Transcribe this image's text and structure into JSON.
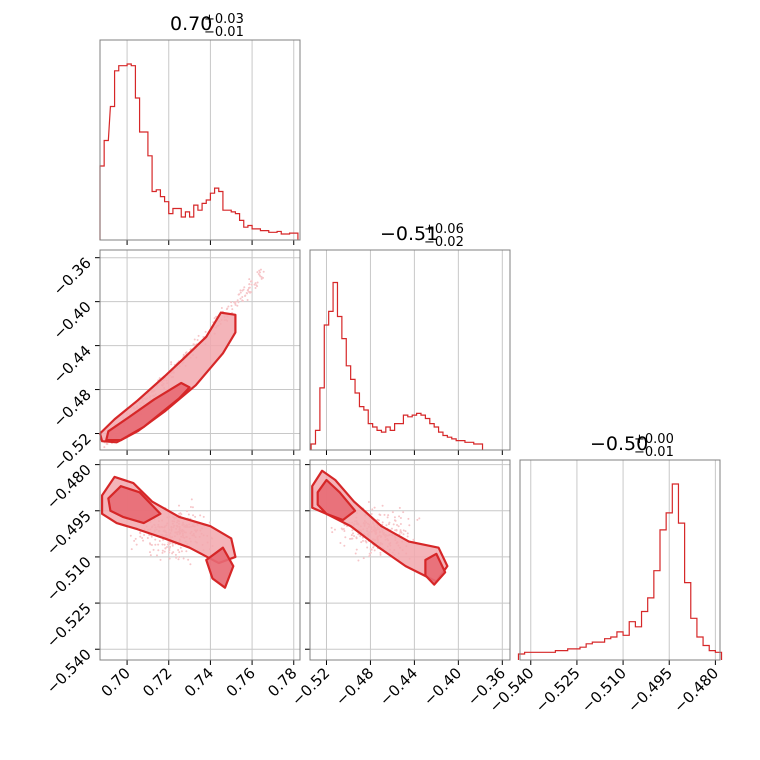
{
  "figure": {
    "kind": "corner plot",
    "accent_color": "#d62728",
    "contour_fill": "#f2a7ad",
    "point_color": "#f6c6c9"
  },
  "chart_data": [
    {
      "type": "histogram",
      "id": "p1",
      "title_main": "0.70",
      "title_sup": "+0.03",
      "title_sub": "−0.01",
      "xlim": [
        0.687,
        0.783
      ],
      "grid": true,
      "xticks": [
        0.7,
        0.72,
        0.74,
        0.76,
        0.78
      ],
      "bins": [
        [
          0.688,
          0.4
        ],
        [
          0.69,
          0.55
        ],
        [
          0.693,
          0.75
        ],
        [
          0.695,
          0.96
        ],
        [
          0.697,
          0.99
        ],
        [
          0.699,
          0.99
        ],
        [
          0.701,
          1.0
        ],
        [
          0.703,
          0.99
        ],
        [
          0.705,
          0.8
        ],
        [
          0.707,
          0.6
        ],
        [
          0.709,
          0.6
        ],
        [
          0.711,
          0.46
        ],
        [
          0.713,
          0.25
        ],
        [
          0.715,
          0.26
        ],
        [
          0.717,
          0.22
        ],
        [
          0.719,
          0.19
        ],
        [
          0.721,
          0.12
        ],
        [
          0.723,
          0.15
        ],
        [
          0.725,
          0.15
        ],
        [
          0.727,
          0.1
        ],
        [
          0.729,
          0.13
        ],
        [
          0.731,
          0.1
        ],
        [
          0.733,
          0.17
        ],
        [
          0.735,
          0.14
        ],
        [
          0.737,
          0.18
        ],
        [
          0.739,
          0.2
        ],
        [
          0.741,
          0.24
        ],
        [
          0.743,
          0.27
        ],
        [
          0.745,
          0.25
        ],
        [
          0.747,
          0.14
        ],
        [
          0.749,
          0.14
        ],
        [
          0.751,
          0.13
        ],
        [
          0.753,
          0.12
        ],
        [
          0.755,
          0.08
        ],
        [
          0.757,
          0.04
        ],
        [
          0.759,
          0.05
        ],
        [
          0.761,
          0.03
        ],
        [
          0.763,
          0.03
        ],
        [
          0.765,
          0.02
        ],
        [
          0.767,
          0.02
        ],
        [
          0.769,
          0.01
        ],
        [
          0.771,
          0.01
        ],
        [
          0.773,
          0.015
        ],
        [
          0.775,
          0.0
        ],
        [
          0.777,
          0.0
        ],
        [
          0.779,
          0.005
        ],
        [
          0.781,
          0.005
        ]
      ]
    },
    {
      "type": "histogram",
      "id": "p2",
      "title_main": "−0.51",
      "title_sup": "+0.06",
      "title_sub": "−0.02",
      "xlim": [
        -0.535,
        -0.353
      ],
      "grid": true,
      "xticks": [
        -0.52,
        -0.48,
        -0.44,
        -0.4,
        -0.36
      ],
      "xtick_labels": [
        "−0.52",
        "−0.48",
        "−0.44",
        "−0.40",
        "−0.36"
      ],
      "bins": [
        [
          -0.532,
          0.0
        ],
        [
          -0.528,
          0.08
        ],
        [
          -0.524,
          0.33
        ],
        [
          -0.52,
          0.7
        ],
        [
          -0.516,
          0.78
        ],
        [
          -0.512,
          0.95
        ],
        [
          -0.508,
          0.75
        ],
        [
          -0.504,
          0.62
        ],
        [
          -0.5,
          0.46
        ],
        [
          -0.496,
          0.38
        ],
        [
          -0.492,
          0.3
        ],
        [
          -0.488,
          0.22
        ],
        [
          -0.484,
          0.2
        ],
        [
          -0.48,
          0.12
        ],
        [
          -0.476,
          0.1
        ],
        [
          -0.472,
          0.08
        ],
        [
          -0.468,
          0.07
        ],
        [
          -0.464,
          0.1
        ],
        [
          -0.46,
          0.08
        ],
        [
          -0.456,
          0.12
        ],
        [
          -0.452,
          0.12
        ],
        [
          -0.448,
          0.17
        ],
        [
          -0.444,
          0.16
        ],
        [
          -0.44,
          0.17
        ],
        [
          -0.436,
          0.18
        ],
        [
          -0.432,
          0.17
        ],
        [
          -0.428,
          0.15
        ],
        [
          -0.424,
          0.12
        ],
        [
          -0.42,
          0.1
        ],
        [
          -0.416,
          0.07
        ],
        [
          -0.412,
          0.05
        ],
        [
          -0.408,
          0.04
        ],
        [
          -0.404,
          0.03
        ],
        [
          -0.4,
          0.02
        ],
        [
          -0.396,
          0.02
        ],
        [
          -0.392,
          0.01
        ],
        [
          -0.388,
          0.01
        ],
        [
          -0.384,
          0.0
        ],
        [
          -0.38,
          0.0
        ]
      ]
    },
    {
      "type": "histogram",
      "id": "p3",
      "title_main": "−0.50",
      "title_sup": "+0.00",
      "title_sub": "−0.01",
      "xlim": [
        -0.5435,
        -0.4785
      ],
      "grid": true,
      "xticks": [
        -0.54,
        -0.525,
        -0.51,
        -0.495,
        -0.48
      ],
      "xtick_labels": [
        "−0.540",
        "−0.525",
        "−0.510",
        "−0.495",
        "−0.480"
      ],
      "bins": [
        [
          -0.543,
          0.0
        ],
        [
          -0.541,
          0.01
        ],
        [
          -0.539,
          0.01
        ],
        [
          -0.537,
          0.01
        ],
        [
          -0.535,
          0.01
        ],
        [
          -0.533,
          0.01
        ],
        [
          -0.531,
          0.02
        ],
        [
          -0.529,
          0.02
        ],
        [
          -0.527,
          0.03
        ],
        [
          -0.525,
          0.03
        ],
        [
          -0.523,
          0.04
        ],
        [
          -0.521,
          0.06
        ],
        [
          -0.519,
          0.07
        ],
        [
          -0.517,
          0.07
        ],
        [
          -0.515,
          0.09
        ],
        [
          -0.513,
          0.1
        ],
        [
          -0.511,
          0.13
        ],
        [
          -0.509,
          0.11
        ],
        [
          -0.507,
          0.19
        ],
        [
          -0.505,
          0.16
        ],
        [
          -0.503,
          0.25
        ],
        [
          -0.501,
          0.33
        ],
        [
          -0.499,
          0.49
        ],
        [
          -0.497,
          0.73
        ],
        [
          -0.495,
          0.83
        ],
        [
          -0.493,
          1.0
        ],
        [
          -0.491,
          0.77
        ],
        [
          -0.489,
          0.42
        ],
        [
          -0.487,
          0.21
        ],
        [
          -0.485,
          0.1
        ],
        [
          -0.483,
          0.05
        ],
        [
          -0.481,
          0.02
        ],
        [
          -0.479,
          0.01
        ]
      ]
    },
    {
      "type": "contour-scatter",
      "id": "p21",
      "xlim": [
        0.687,
        0.783
      ],
      "ylim": [
        -0.535,
        -0.353
      ],
      "grid": true,
      "yticks": [
        -0.36,
        -0.4,
        -0.44,
        -0.48,
        -0.52
      ],
      "ytick_labels": [
        "−0.36",
        "−0.40",
        "−0.44",
        "−0.48",
        "−0.52"
      ],
      "contours": [
        [
          [
            0.688,
            -0.527
          ],
          [
            0.695,
            -0.528
          ],
          [
            0.705,
            -0.518
          ],
          [
            0.718,
            -0.5
          ],
          [
            0.733,
            -0.476
          ],
          [
            0.746,
            -0.447
          ],
          [
            0.752,
            -0.428
          ],
          [
            0.752,
            -0.412
          ],
          [
            0.745,
            -0.41
          ],
          [
            0.738,
            -0.432
          ],
          [
            0.727,
            -0.452
          ],
          [
            0.718,
            -0.468
          ],
          [
            0.705,
            -0.49
          ],
          [
            0.694,
            -0.507
          ],
          [
            0.687,
            -0.52
          ]
        ],
        [
          [
            0.69,
            -0.526
          ],
          [
            0.697,
            -0.526
          ],
          [
            0.708,
            -0.514
          ],
          [
            0.725,
            -0.488
          ],
          [
            0.73,
            -0.478
          ],
          [
            0.726,
            -0.474
          ],
          [
            0.713,
            -0.489
          ],
          [
            0.701,
            -0.505
          ],
          [
            0.691,
            -0.518
          ]
        ]
      ],
      "point_cloud": {
        "x_center": 0.725,
        "y_center": -0.47,
        "spread": 0.012
      }
    },
    {
      "type": "contour-scatter",
      "id": "p31",
      "xlim": [
        0.687,
        0.783
      ],
      "ylim": [
        -0.5435,
        -0.4785
      ],
      "grid": true,
      "yticks": [
        -0.48,
        -0.495,
        -0.51,
        -0.525,
        -0.54
      ],
      "ytick_labels": [
        "−0.480",
        "−0.495",
        "−0.510",
        "−0.525",
        "−0.540"
      ],
      "contours": [
        [
          [
            0.688,
            -0.49
          ],
          [
            0.694,
            -0.484
          ],
          [
            0.703,
            -0.486
          ],
          [
            0.712,
            -0.492
          ],
          [
            0.725,
            -0.497
          ],
          [
            0.74,
            -0.5
          ],
          [
            0.75,
            -0.504
          ],
          [
            0.752,
            -0.51
          ],
          [
            0.744,
            -0.512
          ],
          [
            0.73,
            -0.507
          ],
          [
            0.718,
            -0.504
          ],
          [
            0.705,
            -0.501
          ],
          [
            0.695,
            -0.499
          ],
          [
            0.688,
            -0.496
          ]
        ],
        [
          [
            0.691,
            -0.491
          ],
          [
            0.697,
            -0.487
          ],
          [
            0.706,
            -0.489
          ],
          [
            0.716,
            -0.496
          ],
          [
            0.708,
            -0.499
          ],
          [
            0.698,
            -0.497
          ],
          [
            0.692,
            -0.495
          ]
        ],
        [
          [
            0.738,
            -0.511
          ],
          [
            0.746,
            -0.507
          ],
          [
            0.751,
            -0.513
          ],
          [
            0.747,
            -0.52
          ],
          [
            0.741,
            -0.517
          ]
        ]
      ],
      "point_cloud": {
        "x_center": 0.722,
        "y_center": -0.502,
        "spread": 0.014
      }
    },
    {
      "type": "contour-scatter",
      "id": "p32",
      "xlim": [
        -0.535,
        -0.353
      ],
      "ylim": [
        -0.5435,
        -0.4785
      ],
      "grid": true,
      "contours": [
        [
          [
            -0.533,
            -0.487
          ],
          [
            -0.524,
            -0.482
          ],
          [
            -0.512,
            -0.485
          ],
          [
            -0.495,
            -0.492
          ],
          [
            -0.47,
            -0.5
          ],
          [
            -0.445,
            -0.505
          ],
          [
            -0.418,
            -0.507
          ],
          [
            -0.41,
            -0.513
          ],
          [
            -0.42,
            -0.518
          ],
          [
            -0.448,
            -0.513
          ],
          [
            -0.472,
            -0.507
          ],
          [
            -0.498,
            -0.5
          ],
          [
            -0.52,
            -0.496
          ],
          [
            -0.533,
            -0.494
          ]
        ],
        [
          [
            -0.528,
            -0.489
          ],
          [
            -0.52,
            -0.485
          ],
          [
            -0.508,
            -0.489
          ],
          [
            -0.494,
            -0.495
          ],
          [
            -0.505,
            -0.498
          ],
          [
            -0.52,
            -0.496
          ],
          [
            -0.528,
            -0.493
          ]
        ],
        [
          [
            -0.43,
            -0.511
          ],
          [
            -0.42,
            -0.509
          ],
          [
            -0.412,
            -0.515
          ],
          [
            -0.422,
            -0.519
          ],
          [
            -0.43,
            -0.516
          ]
        ]
      ],
      "point_cloud": {
        "x_center": -0.475,
        "y_center": -0.502,
        "spread": 0.03
      }
    }
  ]
}
